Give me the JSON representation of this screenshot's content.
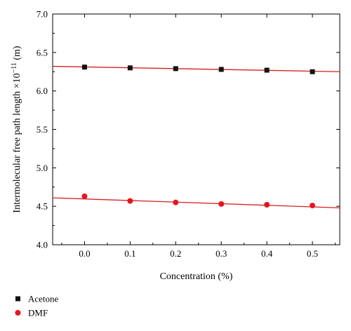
{
  "chart_data": {
    "type": "scatter",
    "title": "",
    "xlabel": "Concentration (%)",
    "ylabel_main": "Intermolecular free path length ×10",
    "ylabel_exp": "−11",
    "ylabel_unit": " (m)",
    "xlim": [
      -0.07,
      0.56
    ],
    "ylim": [
      4.0,
      7.0
    ],
    "x_ticks": [
      0.0,
      0.1,
      0.2,
      0.3,
      0.4,
      0.5
    ],
    "x_tick_labels": [
      "0.0",
      "0.1",
      "0.2",
      "0.3",
      "0.4",
      "0.5"
    ],
    "y_ticks": [
      4.0,
      4.5,
      5.0,
      5.5,
      6.0,
      6.5,
      7.0
    ],
    "y_tick_labels": [
      "4.0",
      "4.5",
      "5.0",
      "5.5",
      "6.0",
      "6.5",
      "7.0"
    ],
    "grid": false,
    "legend_position": "below-left",
    "fit_color": "#d62020",
    "series": [
      {
        "name": "Acetone",
        "marker": "square",
        "color": "#111111",
        "x": [
          0.0,
          0.1,
          0.2,
          0.3,
          0.4,
          0.5
        ],
        "y": [
          6.31,
          6.3,
          6.29,
          6.28,
          6.27,
          6.25
        ],
        "fit": {
          "x": [
            -0.07,
            0.56
          ],
          "y": [
            6.32,
            6.25
          ]
        }
      },
      {
        "name": "DMF",
        "marker": "circle",
        "color": "#e8141e",
        "x": [
          0.0,
          0.1,
          0.2,
          0.3,
          0.4,
          0.5
        ],
        "y": [
          4.63,
          4.57,
          4.55,
          4.53,
          4.52,
          4.51
        ],
        "fit": {
          "x": [
            -0.07,
            0.56
          ],
          "y": [
            4.61,
            4.48
          ]
        }
      }
    ]
  }
}
